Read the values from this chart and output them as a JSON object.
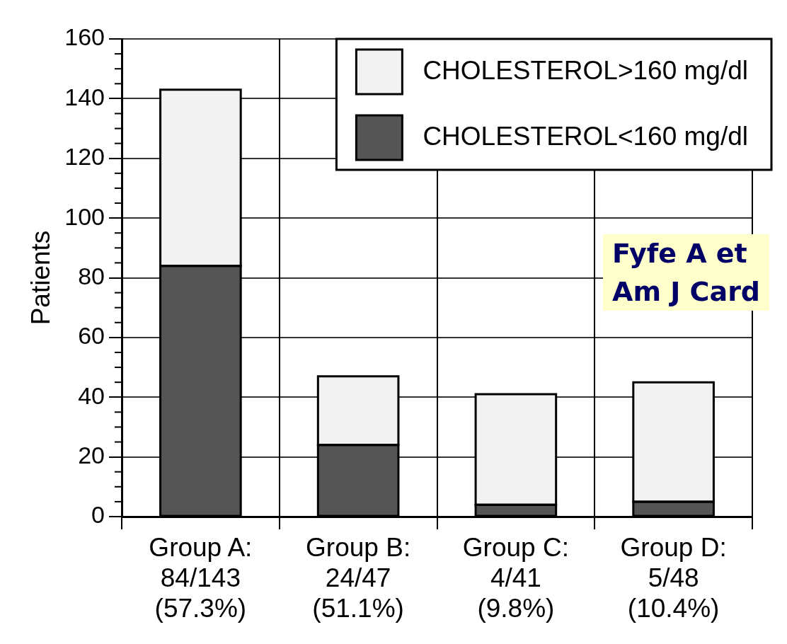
{
  "chart_data": {
    "type": "bar",
    "categories": [
      "Group A:\n84/143\n(57.3%)",
      "Group B:\n24/47\n(51.1%)",
      "Group C:\n4/41\n(9.8%)",
      "Group D:\n5/48\n(10.4%)"
    ],
    "series": [
      {
        "name": "CHOLESTEROL<160 mg/dl",
        "color": "#555555",
        "values": [
          84,
          24,
          4,
          5
        ]
      },
      {
        "name": "CHOLESTEROL>160 mg/dl",
        "color": "#f2f2f2",
        "values": [
          59,
          23,
          37,
          40
        ]
      }
    ],
    "stacked": true,
    "ylabel": "Patients",
    "ylim": [
      0,
      160
    ],
    "yticks": [
      0,
      {
        "value": 5,
        "label": null
      },
      {
        "value": 10,
        "label": null
      },
      {
        "value": 15,
        "label": null
      },
      20,
      {
        "value": 25,
        "label": null
      },
      {
        "value": 30,
        "label": null
      },
      {
        "value": 35,
        "label": null
      },
      40,
      {
        "value": 45,
        "label": null
      },
      {
        "value": 50,
        "label": null
      },
      {
        "value": 55,
        "label": null
      },
      60,
      {
        "value": 65,
        "label": null
      },
      {
        "value": 70,
        "label": null
      },
      {
        "value": 75,
        "label": null
      },
      80,
      {
        "value": 85,
        "label": null
      },
      {
        "value": 90,
        "label": null
      },
      {
        "value": 95,
        "label": null
      },
      100,
      {
        "value": 105,
        "label": null
      },
      {
        "value": 110,
        "label": null
      },
      {
        "value": 115,
        "label": null
      },
      120,
      {
        "value": 125,
        "label": null
      },
      {
        "value": 130,
        "label": null
      },
      {
        "value": 135,
        "label": null
      },
      140,
      {
        "value": 145,
        "label": null
      },
      {
        "value": 150,
        "label": null
      },
      {
        "value": 155,
        "label": null
      },
      160
    ],
    "grid": true,
    "legend": "top right",
    "annotations": [
      "Fyfe A et\nAm J Card"
    ]
  }
}
